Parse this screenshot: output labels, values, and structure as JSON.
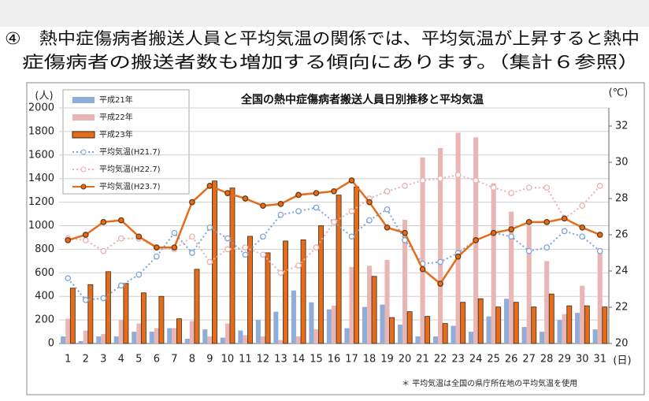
{
  "heading": {
    "lines": [
      "④　熱中症傷病者搬送人員と平均気温の関係では、平均気温が上昇すると熱中",
      "症傷病者の搬送者数も増加する傾向にあります。（集計６参照）"
    ]
  },
  "chart_data": {
    "type": "combo",
    "title": "全国の熱中症傷病者搬送人員日別推移と平均気温",
    "y_unit": "(人)",
    "y2_unit": "(℃)",
    "x_unit": "(日)",
    "footnote": "＊ 平均気温は全国の県庁所在地の平均気温を使用",
    "categories": [
      "1",
      "2",
      "3",
      "4",
      "5",
      "6",
      "7",
      "8",
      "9",
      "10",
      "11",
      "12",
      "13",
      "14",
      "15",
      "16",
      "17",
      "18",
      "19",
      "20",
      "21",
      "22",
      "23",
      "24",
      "25",
      "26",
      "27",
      "28",
      "29",
      "30",
      "31"
    ],
    "ylim": [
      0,
      2000
    ],
    "yticks": [
      0,
      200,
      400,
      600,
      800,
      1000,
      1200,
      1400,
      1600,
      1800,
      2000
    ],
    "y2lim": [
      20,
      33
    ],
    "y2ticks": [
      20,
      22,
      24,
      26,
      28,
      30,
      32
    ],
    "series": [
      {
        "name": "平成21年",
        "kind": "bar",
        "color": "#8fadd8",
        "values": [
          60,
          20,
          60,
          60,
          100,
          100,
          130,
          40,
          120,
          50,
          110,
          200,
          270,
          450,
          350,
          290,
          130,
          310,
          330,
          160,
          60,
          60,
          150,
          100,
          230,
          380,
          140,
          100,
          200,
          260,
          120
        ]
      },
      {
        "name": "平成22年",
        "kind": "bar",
        "color": "#eab5b5",
        "values": [
          210,
          110,
          80,
          200,
          170,
          130,
          130,
          190,
          60,
          170,
          70,
          60,
          30,
          60,
          120,
          320,
          650,
          660,
          710,
          1050,
          1580,
          1660,
          1790,
          1750,
          1360,
          1120,
          1000,
          700,
          250,
          490,
          810
        ]
      },
      {
        "name": "平成23年",
        "kind": "bar",
        "color": "#e46c1a",
        "outline": "#3a2a1a",
        "values": [
          470,
          500,
          610,
          510,
          430,
          400,
          210,
          630,
          1380,
          1320,
          910,
          770,
          870,
          880,
          1000,
          1260,
          1330,
          570,
          220,
          270,
          230,
          170,
          350,
          380,
          310,
          350,
          310,
          420,
          320,
          320,
          310
        ]
      },
      {
        "name": "平均気温(H21.7)",
        "kind": "line",
        "axis": "y2",
        "dotted": true,
        "color": "#7fa3dc",
        "values": [
          23.6,
          22.4,
          22.5,
          23.2,
          23.8,
          24.8,
          26.1,
          25.0,
          26.4,
          25.8,
          24.9,
          25.9,
          27.1,
          27.3,
          27.5,
          26.7,
          25.9,
          26.8,
          27.4,
          25.7,
          24.4,
          24.5,
          25.0,
          25.7,
          26.1,
          25.9,
          25.1,
          25.3,
          26.2,
          25.9,
          25.1
        ]
      },
      {
        "name": "平均気温(H22.7)",
        "kind": "line",
        "axis": "y2",
        "dotted": true,
        "color": "#eab0b0",
        "values": [
          25.8,
          25.7,
          25.1,
          25.8,
          25.8,
          25.3,
          25.2,
          25.9,
          24.5,
          25.2,
          25.3,
          24.9,
          23.9,
          24.3,
          25.3,
          26.7,
          27.3,
          28.0,
          28.4,
          28.7,
          29.0,
          29.1,
          29.3,
          29.0,
          28.6,
          28.3,
          28.6,
          28.6,
          26.9,
          27.6,
          28.7
        ]
      },
      {
        "name": "平均気温(H23.7)",
        "kind": "line",
        "axis": "y2",
        "dotted": false,
        "color": "#e46c1a",
        "marker_color": "#6b3a10",
        "values": [
          25.7,
          26.0,
          26.7,
          26.8,
          25.9,
          25.3,
          25.3,
          27.8,
          28.7,
          28.3,
          28.0,
          27.6,
          27.7,
          28.2,
          28.3,
          28.4,
          29.0,
          27.8,
          26.4,
          26.1,
          24.1,
          23.3,
          24.8,
          25.7,
          26.1,
          26.3,
          26.7,
          26.7,
          26.9,
          26.4,
          26.0
        ]
      }
    ]
  }
}
